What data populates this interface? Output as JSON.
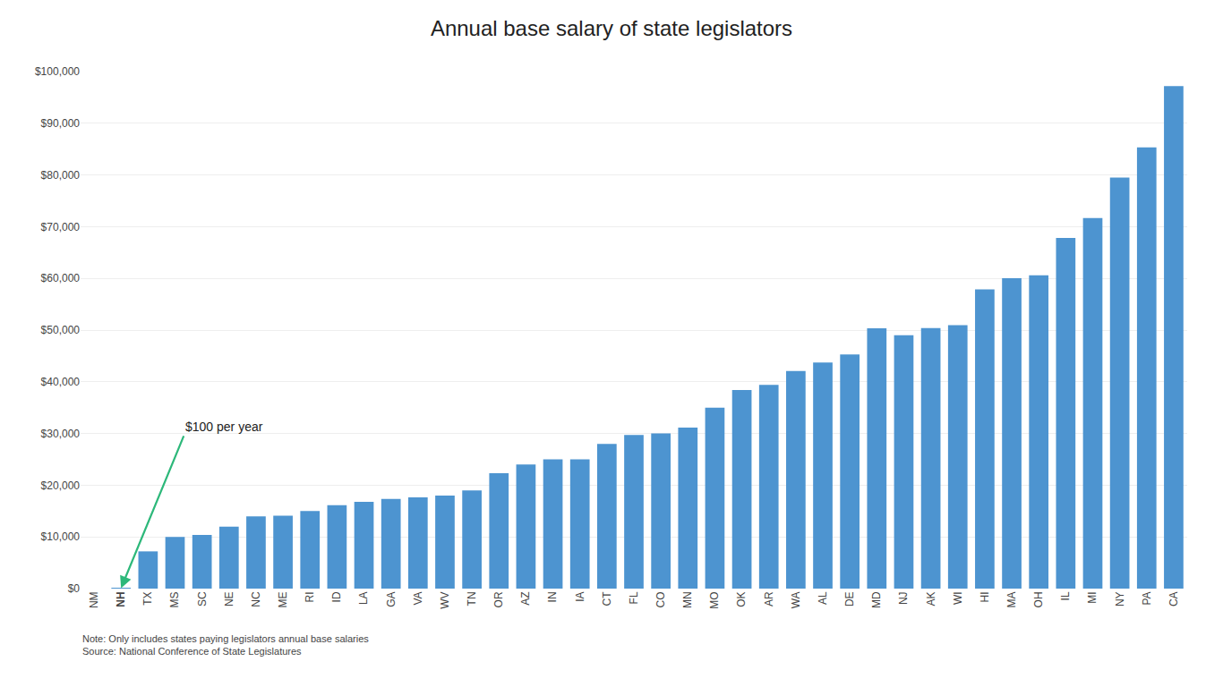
{
  "chart_data": {
    "type": "bar",
    "title": "Annual base salary of state legislators",
    "categories": [
      "NM",
      "NH",
      "TX",
      "MS",
      "SC",
      "NE",
      "NC",
      "ME",
      "RI",
      "ID",
      "LA",
      "GA",
      "VA",
      "WV",
      "TN",
      "OR",
      "AZ",
      "IN",
      "IA",
      "CT",
      "FL",
      "CO",
      "MN",
      "MO",
      "OK",
      "AR",
      "WA",
      "AL",
      "DE",
      "MD",
      "NJ",
      "AK",
      "WI",
      "HI",
      "MA",
      "OH",
      "IL",
      "MI",
      "NY",
      "PA",
      "CA"
    ],
    "values": [
      0,
      100,
      7200,
      10000,
      10400,
      12000,
      13951,
      14088,
      15000,
      16116,
      16800,
      17342,
      17640,
      18000,
      19009,
      22320,
      24000,
      25000,
      25000,
      28000,
      29697,
      30000,
      31140,
      35000,
      38400,
      39399,
      42106,
      43740,
      45291,
      50330,
      49000,
      50400,
      50950,
      57852,
      60032,
      60584,
      67836,
      71685,
      79500,
      85339,
      97197
    ],
    "color": "#4d94d0",
    "ylim": [
      0,
      100000
    ],
    "yticks": [
      {
        "value": 0,
        "label": "$0"
      },
      {
        "value": 10000,
        "label": "$10,000"
      },
      {
        "value": 20000,
        "label": "$20,000"
      },
      {
        "value": 30000,
        "label": "$30,000"
      },
      {
        "value": 40000,
        "label": "$40,000"
      },
      {
        "value": 50000,
        "label": "$50,000"
      },
      {
        "value": 60000,
        "label": "$60,000"
      },
      {
        "value": 70000,
        "label": "$70,000"
      },
      {
        "value": 80000,
        "label": "$80,000"
      },
      {
        "value": 90000,
        "label": "$90,000"
      },
      {
        "value": 100000,
        "label": "$100,000"
      }
    ],
    "grid": true,
    "annotations": [
      {
        "text": "$100 per year",
        "x": "NH",
        "y": 100,
        "color": "#2db87a"
      }
    ],
    "note": "Note: Only includes states paying legislators annual base salaries\nSource: National Conference of State Legislatures"
  }
}
